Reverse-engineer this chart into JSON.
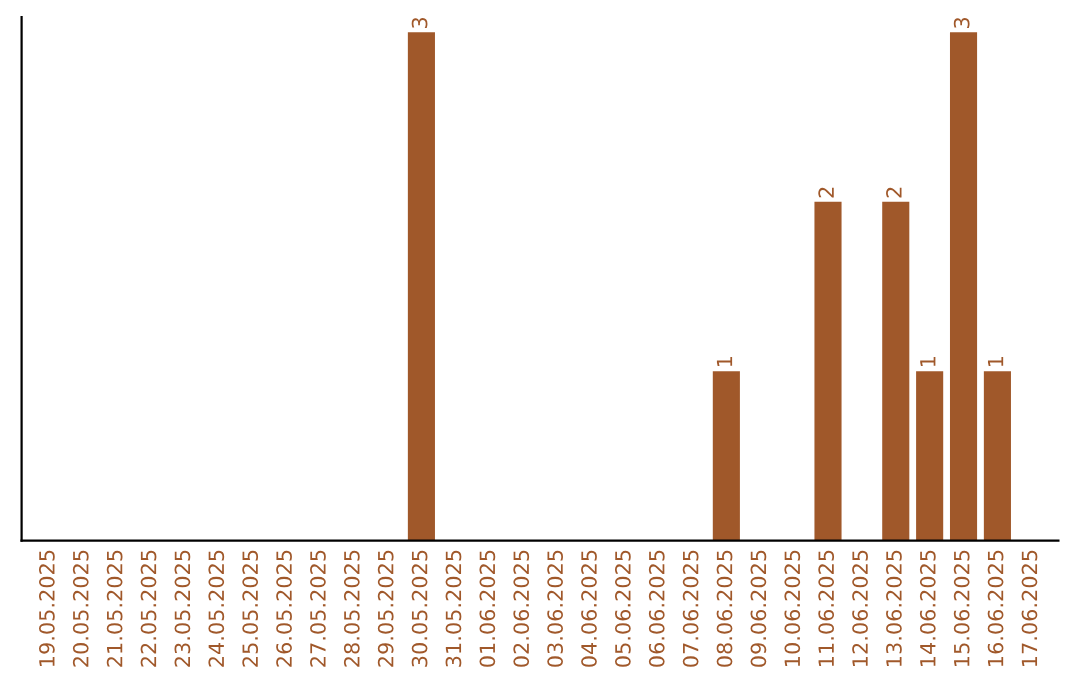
{
  "chart_data": {
    "type": "bar",
    "categories": [
      "19.05.2025",
      "20.05.2025",
      "21.05.2025",
      "22.05.2025",
      "23.05.2025",
      "24.05.2025",
      "25.05.2025",
      "26.05.2025",
      "27.05.2025",
      "28.05.2025",
      "29.05.2025",
      "30.05.2025",
      "31.05.2025",
      "01.06.2025",
      "02.06.2025",
      "03.06.2025",
      "04.06.2025",
      "05.06.2025",
      "06.06.2025",
      "07.06.2025",
      "08.06.2025",
      "09.06.2025",
      "10.06.2025",
      "11.06.2025",
      "12.06.2025",
      "13.06.2025",
      "14.06.2025",
      "15.06.2025",
      "16.06.2025",
      "17.06.2025"
    ],
    "values": [
      0,
      0,
      0,
      0,
      0,
      0,
      0,
      0,
      0,
      0,
      0,
      3,
      0,
      0,
      0,
      0,
      0,
      0,
      0,
      0,
      1,
      0,
      0,
      2,
      0,
      2,
      1,
      3,
      1,
      0
    ],
    "value_labels": [
      null,
      null,
      null,
      null,
      null,
      null,
      null,
      null,
      null,
      null,
      null,
      "3",
      null,
      null,
      null,
      null,
      null,
      null,
      null,
      null,
      "1",
      null,
      null,
      "2",
      null,
      "2",
      "1",
      "3",
      "1",
      null
    ],
    "color": "#a0582a",
    "grid": false,
    "legend": false
  }
}
